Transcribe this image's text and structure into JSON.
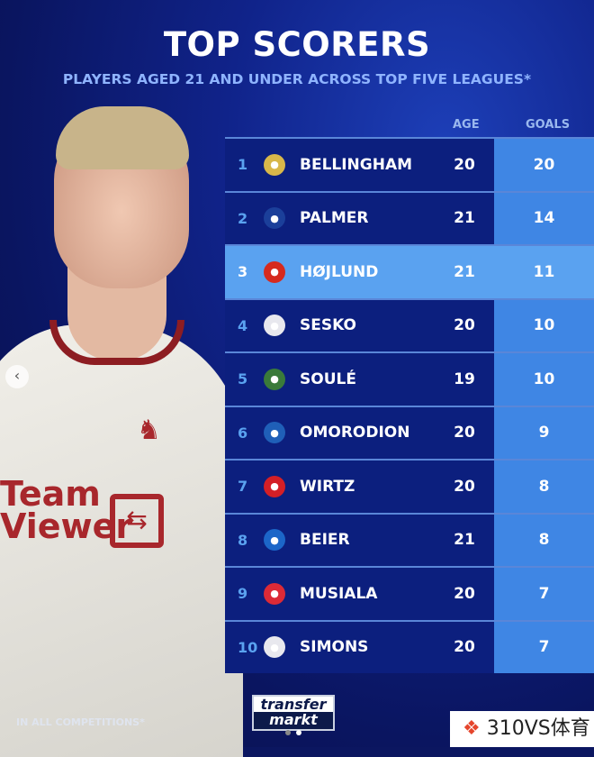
{
  "title": "TOP SCORERS",
  "subtitle": "PLAYERS AGED 21 AND UNDER ACROSS TOP FIVE LEAGUES*",
  "columns": {
    "age": "AGE",
    "goals": "GOALS"
  },
  "rows": [
    {
      "rank": "1",
      "club": "real-madrid-crest",
      "name": "BELLINGHAM",
      "age": "20",
      "goals": "20"
    },
    {
      "rank": "2",
      "club": "chelsea-crest",
      "name": "PALMER",
      "age": "21",
      "goals": "14"
    },
    {
      "rank": "3",
      "club": "manchester-united-crest",
      "name": "HØJLUND",
      "age": "21",
      "goals": "11",
      "highlighted": true
    },
    {
      "rank": "4",
      "club": "rb-leipzig-crest",
      "name": "SESKO",
      "age": "20",
      "goals": "10"
    },
    {
      "rank": "5",
      "club": "frosinone-crest",
      "name": "SOULÉ",
      "age": "19",
      "goals": "10"
    },
    {
      "rank": "6",
      "club": "alaves-crest",
      "name": "OMORODION",
      "age": "20",
      "goals": "9"
    },
    {
      "rank": "7",
      "club": "leverkusen-crest",
      "name": "WIRTZ",
      "age": "20",
      "goals": "8"
    },
    {
      "rank": "8",
      "club": "hoffenheim-crest",
      "name": "BEIER",
      "age": "21",
      "goals": "8"
    },
    {
      "rank": "9",
      "club": "bayern-crest",
      "name": "MUSIALA",
      "age": "20",
      "goals": "7"
    },
    {
      "rank": "10",
      "club": "rb-leipzig-crest",
      "name": "SIMONS",
      "age": "20",
      "goals": "7"
    }
  ],
  "footnote": "IN ALL COMPETITIONS*",
  "logo": {
    "line1": "transfer",
    "line2": "markt"
  },
  "shirt_sponsor": "Team Viewer",
  "watermark": "310VS体育",
  "colors": {
    "row_dark": "#0c1f7e",
    "goals_col": "#3f86e4",
    "highlight": "#5aa2f0"
  }
}
